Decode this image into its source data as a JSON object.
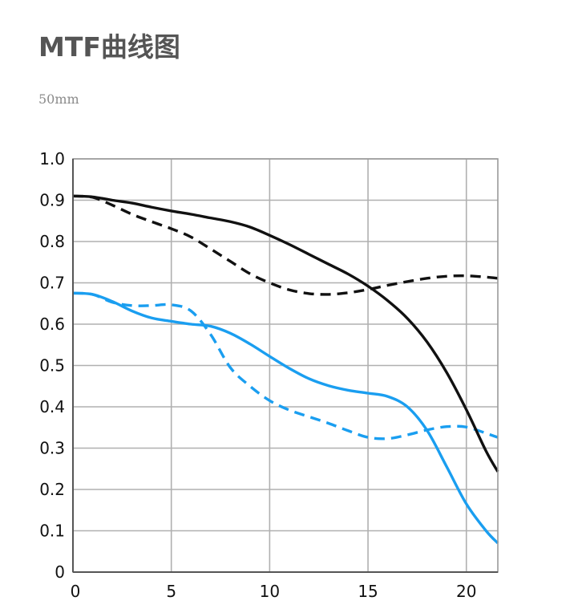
{
  "header": {
    "title": "MTF曲线图",
    "subtitle": "50mm"
  },
  "chart_data": {
    "type": "line",
    "title": "",
    "xlabel": "",
    "ylabel": "",
    "xlim": [
      0,
      21.6
    ],
    "ylim": [
      0,
      1.0
    ],
    "grid": true,
    "legend": "none",
    "x_ticks": [
      "0",
      "5",
      "10",
      "15",
      "20"
    ],
    "x_tick_values": [
      0,
      5,
      10,
      15,
      20
    ],
    "y_ticks": [
      "0",
      "0.1",
      "0.2",
      "0.3",
      "0.4",
      "0.5",
      "0.6",
      "0.7",
      "0.8",
      "0.9",
      "1.0"
    ],
    "y_tick_values": [
      0,
      0.1,
      0.2,
      0.3,
      0.4,
      0.5,
      0.6,
      0.7,
      0.8,
      0.9,
      1.0
    ],
    "series": [
      {
        "color": "#111111",
        "style": "solid",
        "x": [
          0,
          1,
          2,
          3,
          4,
          5,
          6,
          7,
          8,
          9,
          10,
          11,
          12,
          13,
          14,
          15,
          16,
          17,
          18,
          19,
          20,
          21,
          21.6
        ],
        "y": [
          0.91,
          0.908,
          0.9,
          0.893,
          0.883,
          0.874,
          0.866,
          0.857,
          0.848,
          0.835,
          0.815,
          0.793,
          0.769,
          0.745,
          0.721,
          0.692,
          0.657,
          0.614,
          0.557,
          0.483,
          0.393,
          0.293,
          0.243
        ]
      },
      {
        "color": "#111111",
        "style": "dashed",
        "x": [
          0,
          1,
          2,
          3,
          4,
          5,
          6,
          7,
          8,
          9,
          10,
          11,
          12,
          13,
          14,
          15,
          16,
          17,
          18,
          19,
          20,
          21,
          21.6
        ],
        "y": [
          0.91,
          0.907,
          0.888,
          0.866,
          0.848,
          0.831,
          0.811,
          0.782,
          0.752,
          0.722,
          0.7,
          0.683,
          0.674,
          0.672,
          0.676,
          0.684,
          0.694,
          0.703,
          0.711,
          0.716,
          0.717,
          0.714,
          0.711
        ]
      },
      {
        "color": "#1a9ef0",
        "style": "solid",
        "x": [
          0,
          1,
          2,
          3,
          4,
          5,
          6,
          7,
          8,
          9,
          10,
          11,
          12,
          13,
          14,
          15,
          16,
          17,
          18,
          19,
          20,
          21,
          21.6
        ],
        "y": [
          0.675,
          0.672,
          0.655,
          0.632,
          0.615,
          0.607,
          0.6,
          0.595,
          0.578,
          0.552,
          0.522,
          0.493,
          0.468,
          0.451,
          0.44,
          0.433,
          0.425,
          0.4,
          0.343,
          0.255,
          0.165,
          0.1,
          0.07
        ]
      },
      {
        "color": "#1a9ef0",
        "style": "dashed",
        "x": [
          0,
          1,
          2,
          3,
          4,
          5,
          6,
          7,
          8,
          9,
          10,
          11,
          12,
          13,
          14,
          15,
          16,
          17,
          18,
          19,
          20,
          21,
          21.6
        ],
        "y": [
          0.675,
          0.672,
          0.653,
          0.645,
          0.645,
          0.647,
          0.632,
          0.575,
          0.495,
          0.45,
          0.415,
          0.392,
          0.376,
          0.36,
          0.342,
          0.326,
          0.323,
          0.332,
          0.344,
          0.352,
          0.351,
          0.336,
          0.326
        ]
      }
    ]
  }
}
